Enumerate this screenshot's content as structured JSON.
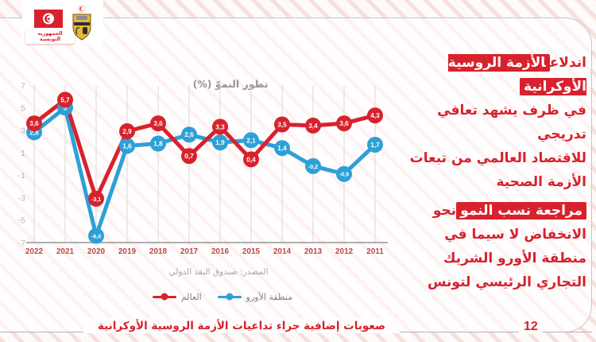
{
  "header": {
    "republic_label": "الجمهورية التونسية",
    "flag_icon": "tunisia-flag",
    "emblem_icon": "tunisia-coat-of-arms"
  },
  "chart_data": {
    "type": "line",
    "title": "تطور النموّ (%)",
    "source": "المصدر: صندوق النقد الدولي",
    "categories": [
      "2022",
      "2021",
      "2020",
      "2019",
      "2018",
      "2017",
      "2016",
      "2015",
      "2014",
      "2013",
      "2012",
      "2011"
    ],
    "y_ticks": [
      7,
      5,
      3,
      1,
      -1,
      -3,
      -5,
      -7
    ],
    "ylim": [
      -7,
      7
    ],
    "grid": "vertical",
    "legend_position": "bottom",
    "series": [
      {
        "name": "العالم",
        "color": "#d7222d",
        "values": [
          3.6,
          5.7,
          -3.1,
          2.9,
          3.6,
          0.7,
          3.3,
          0.4,
          3.5,
          3.4,
          3.6,
          4.3
        ],
        "labels": [
          "3,6",
          "5,7",
          "-3,1",
          "2,9",
          "3,6",
          "0,7",
          "3,3",
          "0,4",
          "3,5",
          "3,4",
          "3,6",
          "4,3"
        ]
      },
      {
        "name": "منطقة الأورو",
        "color": "#2da0d8",
        "values": [
          2.8,
          5,
          -6.4,
          1.6,
          1.8,
          2.6,
          1.9,
          2.1,
          1.4,
          -0.2,
          -0.9,
          1.7
        ],
        "labels": [
          "2,8",
          "5",
          "-6,4",
          "1,6",
          "1,8",
          "2,6",
          "1,9",
          "2,1",
          "1,4",
          "-0,2",
          "-0,9",
          "1,7"
        ]
      }
    ]
  },
  "right_panel": {
    "block1": {
      "line1_plain": "اندلاع",
      "line1_highlight": "الأزمة الروسية الأوكرانية",
      "line2": "في ظرف يشهد تعافي تدريجي",
      "line3": "للاقتصاد العالمي من تبعات",
      "line4": "الأزمة الصحية"
    },
    "block2": {
      "line1_highlight": "مراجعة نسب النمو",
      "line1_plain": "نحو",
      "line2": "الانخفاض لا سيما في",
      "line3": "منطقة الأورو الشريك",
      "line4": "التجاري الرئيسي لتونس"
    }
  },
  "footer": {
    "caption": "صعوبات إضافية جراء تداعيات الأزمة الروسية الأوكرانية",
    "page_number": "12"
  },
  "colors": {
    "accent_red": "#d7222d",
    "series_blue": "#2da0d8",
    "axis_gray": "#b5afae",
    "year_label_red": "#bb4a47",
    "grid_gray": "#dcd7d6"
  }
}
